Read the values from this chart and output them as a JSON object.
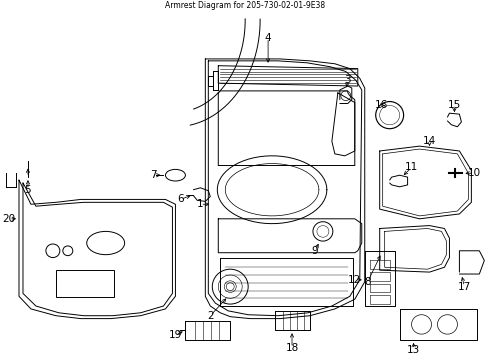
{
  "title": "Armrest Diagram for 205-730-02-01-9E38",
  "background_color": "#ffffff",
  "fig_width": 4.89,
  "fig_height": 3.6,
  "dpi": 100,
  "line_color": "#000000",
  "label_fontsize": 7.5
}
